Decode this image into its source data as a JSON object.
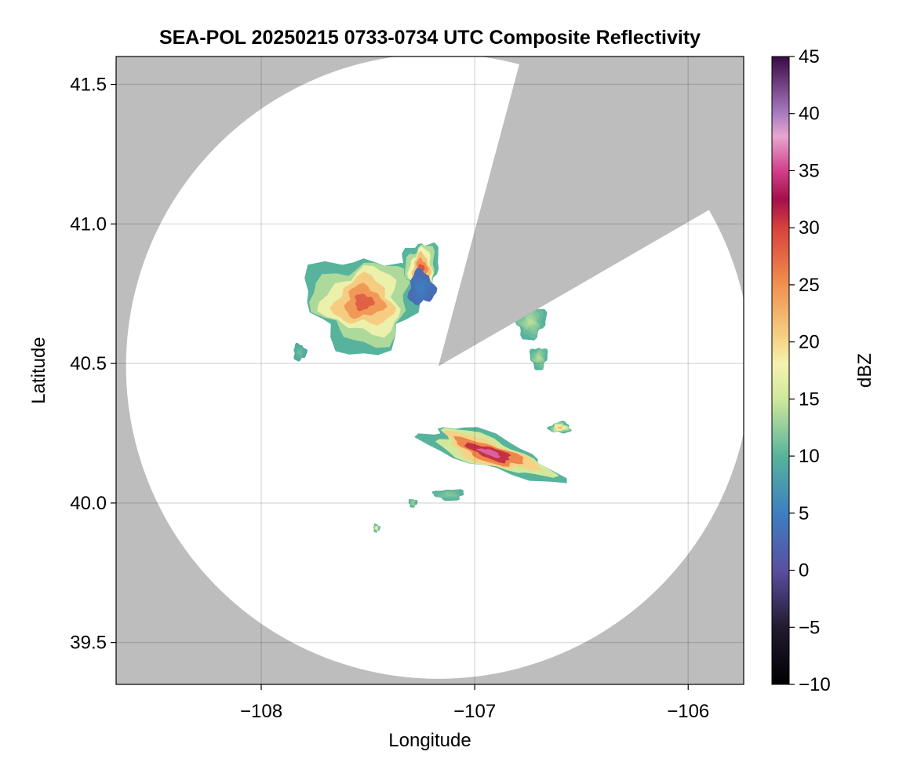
{
  "chart_data": {
    "type": "heatmap",
    "title": "SEA-POL 20250215 0733-0734 UTC Composite Reflectivity",
    "xlabel": "Longitude",
    "ylabel": "Latitude",
    "xlim": [
      -108.68,
      -105.74
    ],
    "ylim": [
      39.35,
      41.6
    ],
    "xticks": [
      -108,
      -107,
      -106
    ],
    "xtick_labels": [
      "−108",
      "−107",
      "−106"
    ],
    "yticks": [
      39.5,
      40.0,
      40.5,
      41.0,
      41.5
    ],
    "ytick_labels": [
      "39.5",
      "40.0",
      "40.5",
      "41.0",
      "41.5"
    ],
    "grid": true,
    "background_color": "#bdbdbd",
    "radar": {
      "center_lon": -107.17,
      "center_lat": 40.49,
      "range_deg_lat": 1.12,
      "blocked_sector_deg": [
        15,
        60
      ],
      "coverage_color": "#ffffff"
    },
    "colorbar": {
      "label": "dBZ",
      "vmin": -10,
      "vmax": 45,
      "ticks": [
        -10,
        -5,
        0,
        5,
        10,
        15,
        20,
        25,
        30,
        35,
        40,
        45
      ],
      "tick_labels": [
        "−10",
        "−5",
        "0",
        "5",
        "10",
        "15",
        "20",
        "25",
        "30",
        "35",
        "40",
        "45"
      ],
      "colormap": "spectral-style",
      "color_stops": [
        {
          "v": -10,
          "c": "#000000"
        },
        {
          "v": -5,
          "c": "#221a30"
        },
        {
          "v": 0,
          "c": "#5a4fa0"
        },
        {
          "v": 5,
          "c": "#3d7fc0"
        },
        {
          "v": 10,
          "c": "#57b39c"
        },
        {
          "v": 15,
          "c": "#cfe89a"
        },
        {
          "v": 18,
          "c": "#f5f3b0"
        },
        {
          "v": 20,
          "c": "#f7d78b"
        },
        {
          "v": 25,
          "c": "#f0914f"
        },
        {
          "v": 30,
          "c": "#d7413c"
        },
        {
          "v": 32.5,
          "c": "#a3104b"
        },
        {
          "v": 35,
          "c": "#d33f8a"
        },
        {
          "v": 38,
          "c": "#e7a6cf"
        },
        {
          "v": 40,
          "c": "#a97bc0"
        },
        {
          "v": 45,
          "c": "#3b0a45"
        }
      ]
    },
    "echo_cells": [
      {
        "name": "northwest storm",
        "lon": -107.52,
        "lat": 40.72,
        "rx": 0.26,
        "ry": 0.17,
        "peak_dbz": 28
      },
      {
        "name": "northwest storm east lobe",
        "lon": -107.25,
        "lat": 40.84,
        "rx": 0.08,
        "ry": 0.1,
        "peak_dbz": 29
      },
      {
        "name": "northwest storm low-reflectivity patch",
        "lon": -107.25,
        "lat": 40.77,
        "rx": 0.06,
        "ry": 0.06,
        "peak_dbz": 5
      },
      {
        "name": "far west cell",
        "lon": -107.82,
        "lat": 40.54,
        "rx": 0.03,
        "ry": 0.03,
        "peak_dbz": 11
      },
      {
        "name": "east cell north",
        "lon": -106.74,
        "lat": 40.65,
        "rx": 0.07,
        "ry": 0.06,
        "peak_dbz": 14
      },
      {
        "name": "east cell south",
        "lon": -106.7,
        "lat": 40.52,
        "rx": 0.04,
        "ry": 0.04,
        "peak_dbz": 14
      },
      {
        "name": "southern band",
        "lon": -106.93,
        "lat": 40.18,
        "rx": 0.32,
        "ry": 0.06,
        "peak_dbz": 36
      },
      {
        "name": "southern band east fragment",
        "lon": -106.6,
        "lat": 40.27,
        "rx": 0.05,
        "ry": 0.02,
        "peak_dbz": 22
      },
      {
        "name": "southwest fragment",
        "lon": -107.12,
        "lat": 40.03,
        "rx": 0.07,
        "ry": 0.02,
        "peak_dbz": 12
      },
      {
        "name": "southwest speck",
        "lon": -107.29,
        "lat": 40.0,
        "rx": 0.02,
        "ry": 0.015,
        "peak_dbz": 14
      },
      {
        "name": "far south speck",
        "lon": -107.46,
        "lat": 39.91,
        "rx": 0.015,
        "ry": 0.015,
        "peak_dbz": 18
      }
    ]
  }
}
